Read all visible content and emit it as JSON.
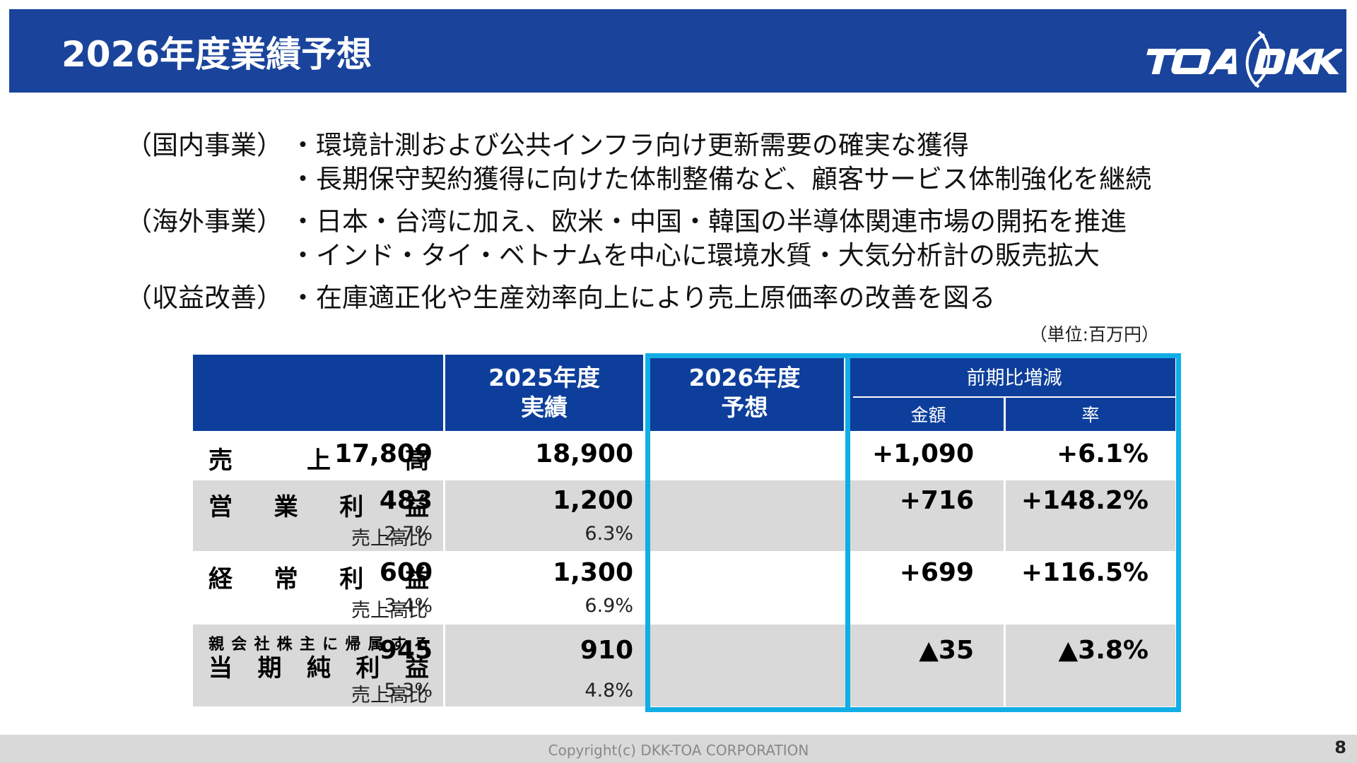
{
  "header": {
    "title": "2026年度業績予想",
    "logo_text": "TOA DKK",
    "colors": {
      "background": "#1a449c",
      "text": "#ffffff"
    }
  },
  "bullets": [
    {
      "category": "（国内事業）",
      "items": [
        "・環境計測および公共インフラ向け更新需要の確実な獲得",
        "・長期保守契約獲得に向けた体制整備など、顧客サービス体制強化を継続"
      ]
    },
    {
      "category": "（海外事業）",
      "items": [
        "・日本・台湾に加え、欧米・中国・韓国の半導体関連市場の開拓を推進",
        "・インド・タイ・ベトナムを中心に環境水質・大気分析計の販売拡大"
      ]
    },
    {
      "category": "（収益改善）",
      "items": [
        "・在庫適正化や生産効率向上により売上原価率の改善を図る"
      ]
    }
  ],
  "unit_note": "（単位:百万円）",
  "table": {
    "header": {
      "fy2025": [
        "2025年度",
        "実績"
      ],
      "fy2026": [
        "2026年度",
        "予想"
      ],
      "diff_group": "前期比増減",
      "diff_amount": "金額",
      "diff_rate": "率"
    },
    "rows": [
      {
        "label_chars": [
          "売",
          "上",
          "高"
        ],
        "fy2025": "17,809",
        "fy2026": "18,900",
        "diff_amount": "+1,090",
        "diff_rate": "+6.1%"
      },
      {
        "label_chars": [
          "営",
          "業",
          "利",
          "益"
        ],
        "fy2025": "483",
        "fy2026": "1,200",
        "diff_amount": "+716",
        "diff_rate": "+148.2%",
        "ratio_label": "売上高比",
        "ratio_2025": "2.7%",
        "ratio_2026": "6.3%"
      },
      {
        "label_chars": [
          "経",
          "常",
          "利",
          "益"
        ],
        "fy2025": "600",
        "fy2026": "1,300",
        "diff_amount": "+699",
        "diff_rate": "+116.5%",
        "ratio_label": "売上高比",
        "ratio_2025": "3.4%",
        "ratio_2026": "6.9%"
      },
      {
        "label_small_chars": [
          "親",
          "会",
          "社",
          "株",
          "主",
          "に",
          "帰",
          "属",
          "す",
          "る"
        ],
        "label_chars": [
          "当",
          "期",
          "純",
          "利",
          "益"
        ],
        "fy2025": "945",
        "fy2026": "910",
        "diff_amount": "▲35",
        "diff_rate": "▲3.8%",
        "ratio_label": "売上高比",
        "ratio_2025": "5.3%",
        "ratio_2026": "4.8%"
      }
    ],
    "colors": {
      "header": "#0d3e9b",
      "stripe": "#d9d9d9",
      "highlight": "#11aee6"
    }
  },
  "footer": {
    "copyright": "Copyright(c) DKK-TOA CORPORATION",
    "page_number": "8"
  }
}
